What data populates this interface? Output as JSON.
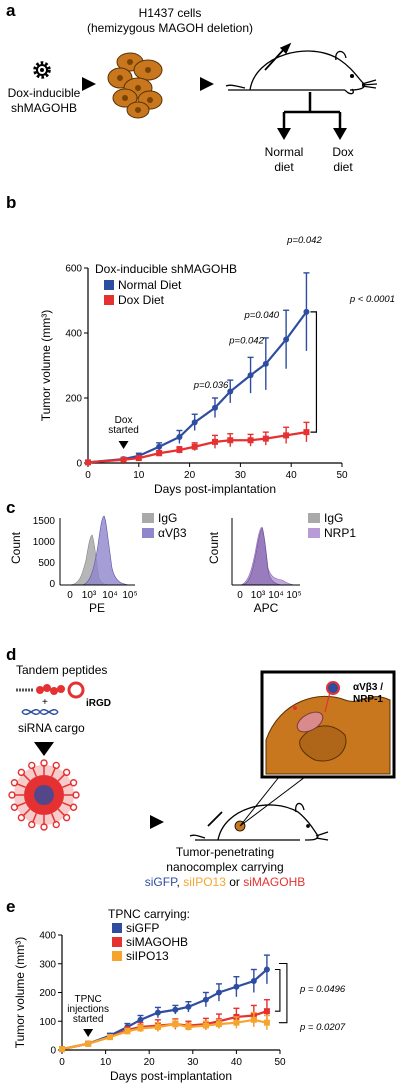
{
  "colors": {
    "blue": "#2f4da0",
    "red": "#e53131",
    "orange": "#f5a42c",
    "gray_hist": "#a9a9a9",
    "purple_hist": "#8f86cc",
    "lilac_hist": "#b79ad6",
    "cell_orange": "#c8771e"
  },
  "panel_a": {
    "letter": "a",
    "cells_label_1": "H1437 cells",
    "cells_label_2": "(hemizygous MAGOH deletion)",
    "dox_label_1": "Dox-inducible",
    "dox_label_2": "shMAGOHB",
    "diet_normal_1": "Normal",
    "diet_normal_2": "diet",
    "diet_dox_1": "Dox",
    "diet_dox_2": "diet",
    "icons": [
      "gear-icon",
      "cell-cluster-icon",
      "mouse-icon",
      "arrow-icon"
    ]
  },
  "panel_b": {
    "letter": "b",
    "legend_title": "Dox-inducible shMAGOHB",
    "marker_label_1": "Dox",
    "marker_label_2": "started",
    "overall_p": "p < 0.0001",
    "point_pvalues": [
      "p=0.036",
      "p=0.042",
      "p=0.040",
      "p=0.042"
    ]
  },
  "panel_c": {
    "letter": "c",
    "left": {
      "ylabel": "Count",
      "xlabel": "PE",
      "legend": [
        "IgG",
        "αVβ3"
      ],
      "yticks": [
        "1500",
        "1000",
        "500",
        "0"
      ],
      "xticks": [
        "0",
        "10³",
        "10⁴",
        "10⁵"
      ]
    },
    "right": {
      "ylabel": "Count",
      "xlabel": "APC",
      "legend": [
        "IgG",
        "NRP1"
      ],
      "xticks": [
        "0",
        "10³",
        "10⁴",
        "10⁵"
      ]
    }
  },
  "panel_d": {
    "letter": "d",
    "peptides_label": "Tandem peptides",
    "irgd_label": "iRGD",
    "plus": "+",
    "sirna_label": "siRNA cargo",
    "receptor_label_1": "αVβ3 /",
    "receptor_label_2": "NRP-1",
    "caption_1": "Tumor-penetrating",
    "caption_2": "nanocomplex carrying",
    "caption_si1": "siGFP",
    "caption_sep1": ", ",
    "caption_si2": "siIPO13",
    "caption_or": " or ",
    "caption_si3": "siMAGOHB"
  },
  "panel_e": {
    "letter": "e",
    "legend_title": "TPNC carrying:",
    "marker_label_1": "TPNC",
    "marker_label_2": "injections",
    "marker_label_3": "started",
    "p_upper": "p = 0.0496",
    "p_lower": "p = 0.0207"
  },
  "chart_data": [
    {
      "type": "line",
      "panel": "b",
      "xlabel": "Days post-implantation",
      "ylabel": "Tumor volume (mm³)",
      "xlim": [
        0,
        50
      ],
      "ylim": [
        0,
        600
      ],
      "xticks": [
        0,
        10,
        20,
        30,
        40,
        50
      ],
      "yticks": [
        0,
        200,
        400,
        600
      ],
      "legend_position": "top-left",
      "series": [
        {
          "name": "Normal Diet",
          "color": "#2f4da0",
          "x": [
            0,
            7,
            10,
            14,
            18,
            21,
            25,
            28,
            32,
            35,
            39,
            43
          ],
          "y": [
            2,
            12,
            22,
            50,
            80,
            125,
            170,
            220,
            270,
            305,
            380,
            465
          ],
          "err": [
            2,
            5,
            8,
            12,
            20,
            25,
            30,
            35,
            55,
            80,
            90,
            120
          ]
        },
        {
          "name": "Dox Diet",
          "color": "#e53131",
          "x": [
            0,
            7,
            10,
            14,
            18,
            21,
            25,
            28,
            32,
            35,
            39,
            43
          ],
          "y": [
            2,
            10,
            15,
            30,
            40,
            50,
            65,
            70,
            70,
            75,
            85,
            95
          ],
          "err": [
            2,
            4,
            5,
            8,
            10,
            12,
            20,
            20,
            18,
            20,
            25,
            30
          ]
        }
      ],
      "annotation_x": 7
    },
    {
      "type": "line",
      "panel": "e",
      "xlabel": "Days post-implantation",
      "ylabel": "Tumor volume (mm³)",
      "xlim": [
        0,
        50
      ],
      "ylim": [
        0,
        400
      ],
      "xticks": [
        0,
        10,
        20,
        30,
        40,
        50
      ],
      "yticks": [
        0,
        100,
        200,
        300,
        400
      ],
      "legend_position": "top-left",
      "series": [
        {
          "name": "siGFP",
          "color": "#2f4da0",
          "x": [
            0,
            6,
            11,
            15,
            18,
            22,
            26,
            29,
            33,
            36,
            40,
            44,
            47
          ],
          "y": [
            3,
            22,
            50,
            80,
            105,
            130,
            140,
            150,
            175,
            200,
            220,
            240,
            280
          ],
          "err": [
            2,
            4,
            8,
            12,
            15,
            18,
            15,
            18,
            25,
            30,
            35,
            40,
            50
          ]
        },
        {
          "name": "siMAGOHB",
          "color": "#e53131",
          "x": [
            0,
            6,
            11,
            15,
            18,
            22,
            26,
            29,
            33,
            36,
            40,
            44,
            47
          ],
          "y": [
            3,
            22,
            45,
            70,
            80,
            85,
            90,
            85,
            90,
            100,
            115,
            120,
            135
          ],
          "err": [
            2,
            4,
            8,
            10,
            15,
            20,
            18,
            15,
            20,
            25,
            30,
            35,
            40
          ]
        },
        {
          "name": "siIPO13",
          "color": "#f5a42c",
          "x": [
            0,
            6,
            11,
            15,
            18,
            22,
            26,
            29,
            33,
            36,
            40,
            44,
            47
          ],
          "y": [
            3,
            22,
            45,
            65,
            75,
            80,
            90,
            80,
            85,
            90,
            95,
            105,
            95
          ],
          "err": [
            2,
            4,
            8,
            10,
            12,
            15,
            15,
            12,
            15,
            15,
            20,
            25,
            25
          ]
        }
      ],
      "annotation_x": 6
    }
  ]
}
